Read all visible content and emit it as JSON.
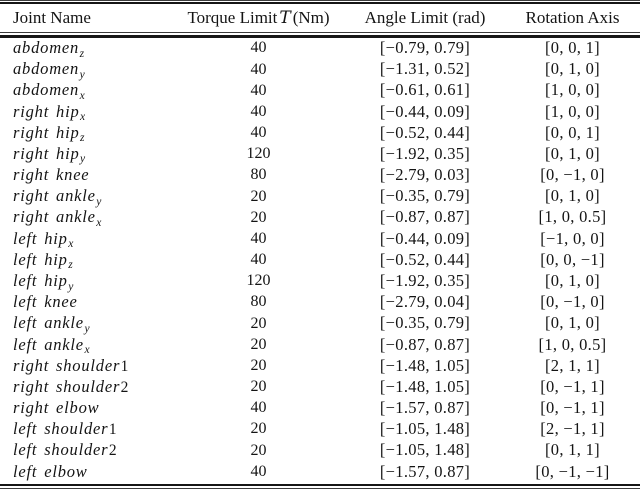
{
  "header": {
    "joint": "Joint Name",
    "torque_pre": "Torque Limit",
    "torque_symbol": "T",
    "torque_post": "(Nm)",
    "angle": "Angle Limit (rad)",
    "axis": "Rotation Axis"
  },
  "rows": [
    {
      "joint": "abdomen",
      "sub": "z",
      "num": "",
      "torque": "40",
      "angle": "[−0.79, 0.79]",
      "axis": "[0, 0, 1]"
    },
    {
      "joint": "abdomen",
      "sub": "y",
      "num": "",
      "torque": "40",
      "angle": "[−1.31, 0.52]",
      "axis": "[0, 1, 0]"
    },
    {
      "joint": "abdomen",
      "sub": "x",
      "num": "",
      "torque": "40",
      "angle": "[−0.61, 0.61]",
      "axis": "[1, 0, 0]"
    },
    {
      "joint": "right hip",
      "sub": "x",
      "num": "",
      "torque": "40",
      "angle": "[−0.44, 0.09]",
      "axis": "[1, 0, 0]"
    },
    {
      "joint": "right hip",
      "sub": "z",
      "num": "",
      "torque": "40",
      "angle": "[−0.52, 0.44]",
      "axis": "[0, 0, 1]"
    },
    {
      "joint": "right hip",
      "sub": "y",
      "num": "",
      "torque": "120",
      "angle": "[−1.92, 0.35]",
      "axis": "[0, 1, 0]"
    },
    {
      "joint": "right knee",
      "sub": "",
      "num": "",
      "torque": "80",
      "angle": "[−2.79, 0.03]",
      "axis": "[0, −1, 0]"
    },
    {
      "joint": "right ankle",
      "sub": "y",
      "num": "",
      "torque": "20",
      "angle": "[−0.35, 0.79]",
      "axis": "[0, 1, 0]"
    },
    {
      "joint": "right ankle",
      "sub": "x",
      "num": "",
      "torque": "20",
      "angle": "[−0.87, 0.87]",
      "axis": "[1, 0, 0.5]"
    },
    {
      "joint": "left hip",
      "sub": "x",
      "num": "",
      "torque": "40",
      "angle": "[−0.44, 0.09]",
      "axis": "[−1, 0, 0]"
    },
    {
      "joint": "left hip",
      "sub": "z",
      "num": "",
      "torque": "40",
      "angle": "[−0.52, 0.44]",
      "axis": "[0, 0, −1]"
    },
    {
      "joint": "left hip",
      "sub": "y",
      "num": "",
      "torque": "120",
      "angle": "[−1.92, 0.35]",
      "axis": "[0, 1, 0]"
    },
    {
      "joint": "left knee",
      "sub": "",
      "num": "",
      "torque": "80",
      "angle": "[−2.79, 0.04]",
      "axis": "[0, −1, 0]"
    },
    {
      "joint": "left ankle",
      "sub": "y",
      "num": "",
      "torque": "20",
      "angle": "[−0.35, 0.79]",
      "axis": "[0, 1, 0]"
    },
    {
      "joint": "left ankle",
      "sub": "x",
      "num": "",
      "torque": "20",
      "angle": "[−0.87, 0.87]",
      "axis": "[1, 0, 0.5]"
    },
    {
      "joint": "right shoulder",
      "sub": "",
      "num": "1",
      "torque": "20",
      "angle": "[−1.48, 1.05]",
      "axis": "[2, 1, 1]"
    },
    {
      "joint": "right shoulder",
      "sub": "",
      "num": "2",
      "torque": "20",
      "angle": "[−1.48, 1.05]",
      "axis": "[0, −1, 1]"
    },
    {
      "joint": "right elbow",
      "sub": "",
      "num": "",
      "torque": "40",
      "angle": "[−1.57, 0.87]",
      "axis": "[0, −1, 1]"
    },
    {
      "joint": "left shoulder",
      "sub": "",
      "num": "1",
      "torque": "20",
      "angle": "[−1.05, 1.48]",
      "axis": "[2, −1, 1]"
    },
    {
      "joint": "left shoulder",
      "sub": "",
      "num": "2",
      "torque": "20",
      "angle": "[−1.05, 1.48]",
      "axis": "[0, 1, 1]"
    },
    {
      "joint": "left elbow",
      "sub": "",
      "num": "",
      "torque": "40",
      "angle": "[−1.57, 0.87]",
      "axis": "[0, −1, −1]"
    }
  ]
}
